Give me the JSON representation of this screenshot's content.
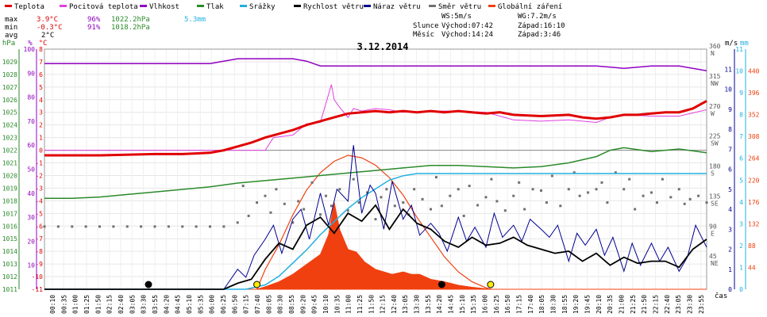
{
  "chart_data": {
    "type": "line",
    "title": "3.12.2014",
    "legend": [
      {
        "name": "Teplota",
        "color": "#e00000"
      },
      {
        "name": "Pocitová teplota",
        "color": "#e040e0"
      },
      {
        "name": "Vlhkost",
        "color": "#9000c0"
      },
      {
        "name": "Tlak",
        "color": "#2a8a2a"
      },
      {
        "name": "Srážky",
        "color": "#20b0e0"
      },
      {
        "name": "Rychlost větru",
        "color": "#000000"
      },
      {
        "name": "Náraz větru",
        "color": "#000090"
      },
      {
        "name": "Směr větru",
        "color": "#707070"
      },
      {
        "name": "Globální záření",
        "color": "#f04010"
      }
    ],
    "stats": [
      {
        "label": "max",
        "temp": "3.9°C",
        "hum": "96%",
        "press": "1022.2hPa",
        "rain": "5.3mm"
      },
      {
        "label": "min",
        "temp": "-0.3°C",
        "hum": "91%",
        "press": "1018.2hPa",
        "rain": ""
      },
      {
        "label": "avg",
        "temp": "2°C",
        "hum": "",
        "press": "",
        "rain": ""
      }
    ],
    "info": {
      "ws": "WS:5m/s",
      "wg": "WG:7.2m/s",
      "sun_label": "Slunce",
      "sun_rise": "Východ:07:42",
      "sun_set": "Západ:16:10",
      "moon_label": "Měsíc",
      "moon_rise": "Východ:14:24",
      "moon_set": "Západ:3:46"
    },
    "axes": {
      "hpa": {
        "unit": "hPa",
        "range": [
          1011,
          1030
        ],
        "ticks": [
          "1011",
          "1012",
          "1013",
          "1014",
          "1015",
          "1016",
          "1017",
          "1018",
          "1019",
          "1020",
          "1021",
          "1022",
          "1023",
          "1024",
          "1025",
          "1026",
          "1027",
          "1028",
          "1029"
        ]
      },
      "pct": {
        "unit": "%",
        "range": [
          0,
          100
        ],
        "ticks": [
          "10",
          "20",
          "30",
          "40",
          "50",
          "60",
          "70",
          "80",
          "90",
          "100"
        ]
      },
      "temp": {
        "unit": "°C",
        "range": [
          -11,
          8
        ],
        "ticks": [
          "-11",
          "-10",
          "-9",
          "-8",
          "-7",
          "-6",
          "-5",
          "-4",
          "-3",
          "-2",
          "-1",
          "0",
          "1",
          "2",
          "3",
          "4",
          "5",
          "6",
          "7",
          "8"
        ]
      },
      "dir": {
        "ticks": [
          "45\nNE",
          "90\nE",
          "135\nSE",
          "180\nS",
          "225\nSW",
          "270\nW",
          "315\nNW",
          "360\nN"
        ]
      },
      "ms": {
        "unit": "m/s",
        "range": [
          0,
          12
        ],
        "ticks": [
          "0",
          "1",
          "2",
          "3",
          "4",
          "5",
          "6",
          "7",
          "8",
          "9",
          "10",
          "11"
        ]
      },
      "mm": {
        "unit": "mm",
        "range": [
          0,
          11
        ],
        "ticks": [
          "0",
          "1",
          "2",
          "3",
          "4",
          "5",
          "6",
          "7",
          "8",
          "9",
          "10",
          "11"
        ]
      },
      "wm2": {
        "range": [
          0,
          484
        ],
        "ticks": [
          "44",
          "88",
          "132",
          "176",
          "220",
          "264",
          "308",
          "352",
          "396",
          "440"
        ]
      },
      "x_label": "čas",
      "x_ticks": [
        "00:10",
        "00:35",
        "01:00",
        "01:25",
        "01:50",
        "02:15",
        "02:40",
        "03:05",
        "03:30",
        "03:55",
        "04:20",
        "04:45",
        "05:10",
        "05:35",
        "06:00",
        "06:25",
        "06:50",
        "07:15",
        "07:40",
        "08:05",
        "08:30",
        "08:55",
        "09:20",
        "09:45",
        "10:10",
        "10:35",
        "11:00",
        "11:25",
        "11:50",
        "12:15",
        "12:40",
        "13:05",
        "13:30",
        "13:55",
        "14:20",
        "14:45",
        "15:10",
        "15:35",
        "16:00",
        "16:25",
        "16:50",
        "17:15",
        "17:40",
        "18:05",
        "18:30",
        "18:55",
        "19:20",
        "19:45",
        "20:10",
        "20:35",
        "21:00",
        "21:25",
        "21:50",
        "22:15",
        "22:40",
        "23:05",
        "23:30",
        "23:55"
      ]
    },
    "series": {
      "temperature": {
        "x": [
          0,
          2,
          4,
          5,
          6,
          6.5,
          7,
          7.5,
          8,
          8.5,
          9,
          9.5,
          10,
          10.5,
          11,
          11.5,
          12,
          12.5,
          13,
          13.5,
          14,
          14.5,
          15,
          15.5,
          16,
          16.5,
          17,
          18,
          19,
          19.5,
          20,
          20.5,
          21,
          21.5,
          22,
          22.5,
          23,
          23.5,
          24
        ],
        "y": [
          -0.4,
          -0.4,
          -0.3,
          -0.3,
          -0.2,
          0.0,
          0.3,
          0.6,
          1.0,
          1.3,
          1.6,
          2.0,
          2.3,
          2.6,
          2.9,
          3.0,
          3.1,
          3.0,
          3.1,
          3.0,
          3.1,
          3.0,
          3.1,
          3.0,
          2.9,
          3.0,
          2.8,
          2.7,
          2.8,
          2.6,
          2.5,
          2.6,
          2.8,
          2.8,
          2.9,
          3.0,
          3.0,
          3.3,
          3.9
        ]
      },
      "apparent": {
        "x": [
          0,
          7.5,
          8,
          8.3,
          9,
          9.5,
          10,
          10.4,
          10.5,
          10.7,
          11,
          11.2,
          11.5,
          12,
          12.5,
          13,
          14,
          15,
          16,
          17,
          18,
          19,
          20,
          20.5,
          21,
          22,
          23,
          24
        ],
        "y": [
          0,
          0,
          0,
          1.0,
          1.2,
          2.1,
          2.2,
          5.2,
          4.0,
          3.4,
          2.6,
          3.3,
          3.1,
          3.3,
          3.2,
          3.0,
          3.1,
          3.1,
          3.0,
          2.4,
          2.3,
          2.4,
          2.2,
          2.6,
          2.8,
          2.7,
          2.7,
          3.2
        ]
      },
      "humidity": {
        "x": [
          0,
          6,
          7,
          8,
          9,
          9.5,
          10,
          11,
          12,
          13,
          14,
          15,
          16,
          17,
          18,
          19,
          20,
          21,
          22,
          23,
          24
        ],
        "y": [
          94,
          94,
          96,
          96,
          96,
          95,
          93,
          93,
          93,
          93,
          93,
          93,
          93,
          93,
          93,
          93,
          93,
          92,
          93,
          93,
          91
        ]
      },
      "pressure": {
        "x": [
          0,
          1,
          2,
          3,
          4,
          5,
          6,
          7,
          8,
          9,
          10,
          11,
          12,
          13,
          14,
          15,
          16,
          17,
          18,
          19,
          20,
          20.5,
          21,
          22,
          23,
          24
        ],
        "y": [
          1018.2,
          1018.2,
          1018.3,
          1018.5,
          1018.7,
          1018.9,
          1019.1,
          1019.4,
          1019.6,
          1019.8,
          1020.0,
          1020.2,
          1020.4,
          1020.6,
          1020.8,
          1020.8,
          1020.7,
          1020.6,
          1020.7,
          1021.0,
          1021.5,
          1022.0,
          1022.2,
          1021.9,
          1022.1,
          1021.8
        ]
      },
      "rain_total": {
        "x": [
          0,
          7.3,
          8,
          8.5,
          9,
          9.5,
          10,
          10.5,
          11,
          11.5,
          12,
          12.5,
          13,
          13.5,
          24
        ],
        "y": [
          0,
          0,
          0.2,
          0.6,
          1.2,
          1.8,
          2.5,
          3.1,
          3.7,
          4.2,
          4.6,
          5.0,
          5.2,
          5.3,
          5.3
        ]
      },
      "wind_speed": {
        "x": [
          0,
          6.5,
          7,
          7.5,
          8,
          8.5,
          9,
          9.5,
          10,
          10.5,
          11,
          11.5,
          12,
          12.5,
          13,
          13.5,
          14,
          14.5,
          15,
          15.5,
          16,
          16.5,
          17,
          17.5,
          18,
          18.5,
          19,
          19.5,
          20,
          20.5,
          21,
          21.5,
          22,
          22.5,
          23,
          23.5,
          24
        ],
        "y": [
          0,
          0,
          0.3,
          0.5,
          1.5,
          2.3,
          2.0,
          3.2,
          3.6,
          2.8,
          3.8,
          3.4,
          4.2,
          3.0,
          4.0,
          3.3,
          3.0,
          2.4,
          2.1,
          2.6,
          2.2,
          2.3,
          2.6,
          2.2,
          2.0,
          1.8,
          1.9,
          1.4,
          1.8,
          1.2,
          1.6,
          1.3,
          1.4,
          1.4,
          1.1,
          2.0,
          2.5
        ]
      },
      "wind_gust": {
        "x": [
          0,
          6.5,
          7,
          7.3,
          7.6,
          8,
          8.3,
          8.6,
          9,
          9.3,
          9.6,
          10,
          10.3,
          10.6,
          11,
          11.2,
          11.5,
          11.8,
          12,
          12.3,
          12.6,
          13,
          13.3,
          13.6,
          14,
          14.3,
          14.6,
          15,
          15.3,
          15.6,
          16,
          16.3,
          16.6,
          17,
          17.3,
          17.6,
          18,
          18.3,
          18.6,
          19,
          19.3,
          19.6,
          20,
          20.3,
          20.6,
          21,
          21.3,
          21.6,
          22,
          22.3,
          22.6,
          23,
          23.3,
          23.6,
          24
        ],
        "y": [
          0,
          0,
          1.0,
          0.6,
          1.7,
          2.5,
          3.2,
          1.8,
          3.5,
          4.0,
          2.5,
          4.8,
          3.2,
          5.0,
          4.4,
          7.2,
          3.8,
          5.2,
          4.8,
          3.0,
          5.4,
          3.5,
          4.2,
          2.7,
          3.3,
          2.8,
          1.9,
          3.6,
          2.4,
          3.1,
          2.1,
          3.8,
          2.6,
          3.2,
          2.4,
          3.5,
          3.0,
          2.6,
          3.2,
          1.4,
          2.8,
          2.2,
          3.0,
          1.7,
          2.6,
          0.9,
          2.3,
          1.2,
          2.3,
          1.4,
          2.1,
          0.9,
          1.6,
          3.2,
          2.1
        ]
      },
      "wind_dir": {
        "x": [
          0,
          0.5,
          1,
          1.5,
          2,
          2.5,
          3,
          3.5,
          4,
          4.5,
          5,
          5.5,
          6,
          6.5,
          7,
          7.2,
          7.4,
          7.7,
          8,
          8.2,
          8.4,
          8.7,
          9,
          9.2,
          9.4,
          9.7,
          10,
          10.2,
          10.4,
          10.7,
          11,
          11.2,
          11.4,
          11.7,
          12,
          12.2,
          12.4,
          12.7,
          13,
          13.2,
          13.4,
          13.7,
          14,
          14.2,
          14.4,
          14.7,
          15,
          15.2,
          15.4,
          15.7,
          16,
          16.2,
          16.4,
          16.7,
          17,
          17.2,
          17.4,
          17.7,
          18,
          18.2,
          18.4,
          18.7,
          19,
          19.2,
          19.4,
          19.7,
          20,
          20.2,
          20.4,
          20.7,
          21,
          21.2,
          21.4,
          21.7,
          22,
          22.2,
          22.4,
          22.7,
          23,
          23.2,
          23.4,
          23.7,
          24
        ],
        "y": [
          94,
          94,
          94,
          94,
          94,
          94,
          94,
          94,
          94,
          94,
          94,
          94,
          94,
          94,
          100,
          155,
          110,
          130,
          140,
          115,
          150,
          128,
          100,
          132,
          120,
          160,
          112,
          140,
          125,
          150,
          118,
          165,
          130,
          145,
          105,
          138,
          150,
          125,
          130,
          112,
          150,
          135,
          120,
          168,
          125,
          140,
          150,
          110,
          155,
          126,
          138,
          165,
          132,
          118,
          140,
          160,
          120,
          150,
          148,
          130,
          170,
          125,
          150,
          175,
          140,
          145,
          150,
          160,
          130,
          175,
          150,
          165,
          120,
          140,
          145,
          130,
          165,
          138,
          150,
          128,
          135,
          140,
          130
        ]
      },
      "radiation": {
        "x": [
          0,
          7.7,
          8,
          8.5,
          9,
          9.5,
          10,
          10.3,
          10.5,
          10.7,
          11,
          11.3,
          11.6,
          12,
          12.3,
          12.6,
          13,
          13.3,
          13.6,
          14,
          14.5,
          15,
          15.5,
          16,
          16.2,
          24
        ],
        "y": [
          0,
          0,
          5,
          15,
          30,
          50,
          70,
          110,
          175,
          120,
          80,
          75,
          55,
          40,
          35,
          30,
          35,
          30,
          30,
          20,
          15,
          8,
          4,
          1,
          0,
          0
        ]
      },
      "radiation_theoretical": {
        "x": [
          7.7,
          8,
          8.5,
          9,
          9.5,
          10,
          10.5,
          11,
          11.5,
          12,
          12.5,
          13,
          13.5,
          14,
          14.5,
          15,
          15.5,
          16,
          16.2
        ],
        "y": [
          0,
          40,
          90,
          150,
          200,
          235,
          258,
          270,
          265,
          250,
          225,
          190,
          145,
          105,
          65,
          35,
          15,
          3,
          0
        ]
      }
    },
    "markers": {
      "sun_x": [
        7.7,
        16.17
      ],
      "moon_x": [
        3.77,
        14.4
      ]
    }
  }
}
